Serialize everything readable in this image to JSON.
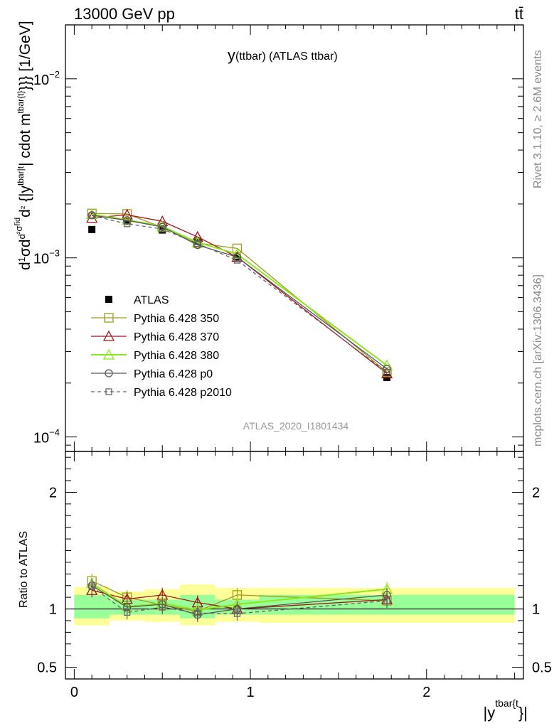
{
  "header": {
    "energy_label": "13000 GeV pp",
    "process_label": "tt̄"
  },
  "side_labels": {
    "rivet": "Rivet 3.1.10, ≥ 2.6M events",
    "mcplots": "mcplots.cern.ch [arXiv:1306.3436]"
  },
  "watermark": "ATLAS_2020_I1801434",
  "colors": {
    "atlas": "#000000",
    "p350": "#a09a1e",
    "p370": "#a0141e",
    "p380": "#8ee61e",
    "p0": "#555555",
    "p2010": "#666666",
    "band_inner": "#99ff99",
    "band_outer": "#ffff99"
  },
  "chart_data": [
    {
      "type": "line",
      "panel": "main",
      "title": "y(ttbar) (ATLAS ttbar)",
      "title_main": "y",
      "title_sub": "(ttbar) (ATLAS ttbar)",
      "ylabel_parts": [
        "d",
        "1",
        "σ",
        "d",
        "d",
        "²",
        "σ",
        "fid",
        "d",
        "²",
        " {|y",
        "tbar|t",
        "| cdot m",
        "tbar{t}",
        "}}} [1/GeV]"
      ],
      "y_scale": "log",
      "ylim": [
        8.3e-05,
        0.02
      ],
      "xlim": [
        -0.05,
        2.55
      ],
      "ytick_labels": [
        {
          "base": "10",
          "exp": "−4",
          "value": 0.0001
        },
        {
          "base": "10",
          "exp": "−3",
          "value": 0.001
        },
        {
          "base": "10",
          "exp": "−2",
          "value": 0.01
        }
      ],
      "x": [
        0.1,
        0.3,
        0.5,
        0.7,
        0.925,
        1.775
      ],
      "series": [
        {
          "name": "ATLAS",
          "key": "atlas",
          "marker": "filled-square",
          "style": "none",
          "values": [
            0.00144,
            0.0016,
            0.00143,
            0.00124,
            0.00101,
            0.000215
          ]
        },
        {
          "name": "Pythia 6.428 350",
          "key": "p350",
          "marker": "open-square",
          "style": "solid",
          "values": [
            0.00177,
            0.00176,
            0.00148,
            0.00121,
            0.00113,
            0.00023
          ]
        },
        {
          "name": "Pythia 6.428 370",
          "key": "p370",
          "marker": "open-triangle",
          "style": "solid",
          "values": [
            0.00167,
            0.00174,
            0.0016,
            0.00131,
            0.00101,
            0.000226
          ]
        },
        {
          "name": "Pythia 6.428 380",
          "key": "p380",
          "marker": "open-triangle",
          "style": "solid",
          "values": [
            0.00175,
            0.00163,
            0.0015,
            0.00122,
            0.00105,
            0.000251
          ]
        },
        {
          "name": "Pythia 6.428 p0",
          "key": "p0",
          "marker": "open-circle",
          "style": "solid",
          "values": [
            0.00173,
            0.00162,
            0.00149,
            0.00118,
            0.00101,
            0.00024
          ]
        },
        {
          "name": "Pythia 6.428 p2010",
          "key": "p2010",
          "marker": "open-square",
          "style": "dashed",
          "values": [
            0.00172,
            0.00155,
            0.00145,
            0.0012,
            0.00097,
            0.00023
          ]
        }
      ]
    },
    {
      "type": "line",
      "panel": "ratio",
      "ylabel": "Ratio to ATLAS",
      "xlabel_base": "|y",
      "xlabel_sup": "tbar{t",
      "xlabel_end": "}|",
      "ylim": [
        0.4,
        2.35
      ],
      "xlim": [
        -0.05,
        2.55
      ],
      "ytick_labels": [
        {
          "label": "0.5",
          "value": 0.5
        },
        {
          "label": "1",
          "value": 1
        },
        {
          "label": "2",
          "value": 2
        }
      ],
      "xtick_labels": [
        {
          "label": "0",
          "value": 0
        },
        {
          "label": "1",
          "value": 1
        },
        {
          "label": "2",
          "value": 2
        }
      ],
      "bins": [
        [
          0.0,
          0.2
        ],
        [
          0.2,
          0.4
        ],
        [
          0.4,
          0.6
        ],
        [
          0.6,
          0.8
        ],
        [
          0.8,
          1.05
        ],
        [
          1.05,
          2.5
        ]
      ],
      "band_inner": [
        [
          0.92,
          1.12
        ],
        [
          0.95,
          1.08
        ],
        [
          0.95,
          1.08
        ],
        [
          0.92,
          1.12
        ],
        [
          0.95,
          1.08
        ],
        [
          0.95,
          1.12
        ]
      ],
      "band_outer": [
        [
          0.86,
          1.19
        ],
        [
          0.9,
          1.15
        ],
        [
          0.89,
          1.17
        ],
        [
          0.86,
          1.21
        ],
        [
          0.89,
          1.18
        ],
        [
          0.88,
          1.18
        ]
      ],
      "x": [
        0.1,
        0.3,
        0.5,
        0.7,
        0.925,
        1.775
      ],
      "series": [
        {
          "name": "Pythia 6.428 350",
          "key": "p350",
          "values": [
            1.24,
            1.1,
            1.035,
            0.98,
            1.12,
            1.07
          ]
        },
        {
          "name": "Pythia 6.428 370",
          "key": "p370",
          "values": [
            1.16,
            1.085,
            1.12,
            1.055,
            1.0,
            1.08
          ]
        },
        {
          "name": "Pythia 6.428 380",
          "key": "p380",
          "values": [
            1.22,
            1.02,
            1.05,
            0.99,
            1.04,
            1.17
          ]
        },
        {
          "name": "Pythia 6.428 p0",
          "key": "p0",
          "values": [
            1.2,
            1.015,
            1.04,
            0.95,
            1.0,
            1.12
          ]
        },
        {
          "name": "Pythia 6.428 p2010",
          "key": "p2010",
          "values": [
            1.19,
            0.97,
            1.015,
            0.965,
            0.96,
            1.07
          ]
        }
      ]
    }
  ]
}
